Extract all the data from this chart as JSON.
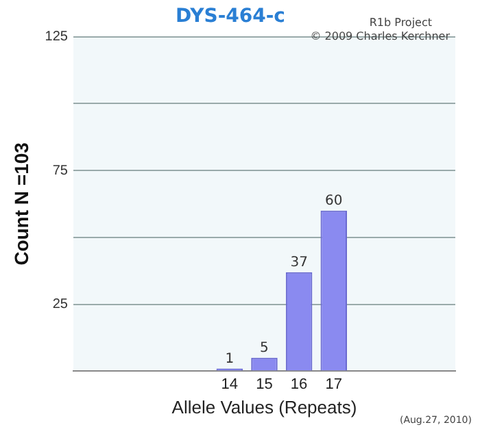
{
  "chart_data": {
    "type": "bar",
    "title": "DYS-464-c",
    "xlabel": "Allele Values (Repeats)",
    "ylabel": "Count N =103",
    "categories": [
      null,
      null,
      null,
      null,
      "14",
      "15",
      "16",
      "17",
      null,
      null,
      null
    ],
    "values": [
      null,
      null,
      null,
      null,
      1,
      5,
      37,
      60,
      null,
      null,
      null
    ],
    "color": "#8a8af0",
    "ylim": [
      0,
      125
    ],
    "yticks": [
      {
        "value": 0,
        "label": null
      },
      25,
      {
        "value": 50,
        "label": null
      },
      75,
      {
        "value": 100,
        "label": null
      },
      125
    ],
    "grid": "y",
    "data_labels": true,
    "annotations": [
      "R1b Project",
      "© 2009 Charles Kerchner",
      "(Aug.27, 2010)"
    ]
  }
}
